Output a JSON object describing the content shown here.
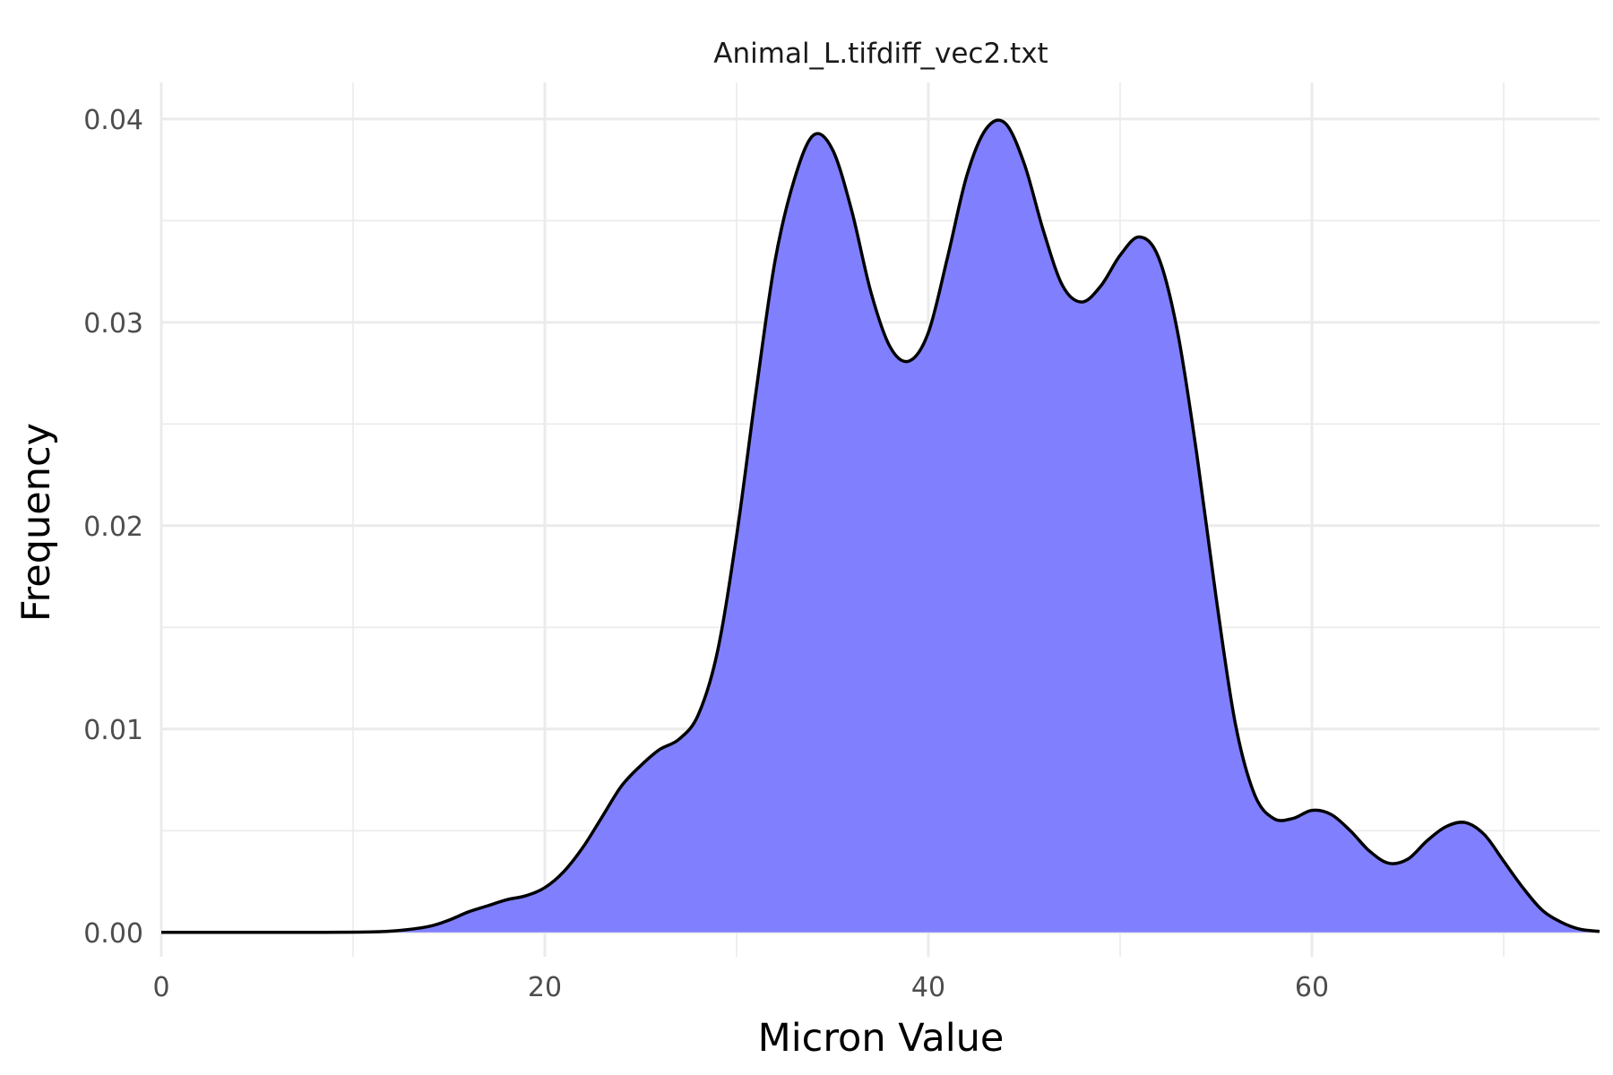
{
  "chart_data": {
    "type": "area",
    "title": "Animal_L.tifdiff_vec2.txt",
    "xlabel": "Micron Value",
    "ylabel": "Frequency",
    "xlim": [
      0,
      75
    ],
    "ylim": [
      -0.0012,
      0.0418
    ],
    "x_ticks": [
      0,
      20,
      40,
      60
    ],
    "x_tick_labels": [
      "0",
      "20",
      "40",
      "60"
    ],
    "y_ticks": [
      0,
      0.01,
      0.02,
      0.03,
      0.04
    ],
    "y_tick_labels": [
      "0.00",
      "0.01",
      "0.02",
      "0.03",
      "0.04"
    ],
    "grid": true,
    "fill_color": "#8080ff",
    "line_color": "#000000",
    "series": [
      {
        "x": [
          0,
          8,
          11,
          12.5,
          14,
          15,
          16,
          17,
          18,
          19,
          20,
          21,
          22,
          23,
          24,
          25,
          26,
          27,
          28,
          29,
          30,
          31,
          32,
          33,
          34,
          35,
          36,
          37,
          38,
          39,
          40,
          41,
          42,
          43,
          44,
          45,
          46,
          47,
          48,
          49,
          50,
          51,
          52,
          53,
          54,
          55,
          56,
          57,
          58,
          59,
          60,
          61,
          62,
          63,
          64,
          65,
          66,
          67,
          68,
          69,
          70,
          71,
          72,
          73,
          74,
          75
        ],
        "y": [
          0,
          0,
          2e-05,
          0.0001,
          0.0003,
          0.0006,
          0.001,
          0.0013,
          0.0016,
          0.0018,
          0.0022,
          0.003,
          0.0042,
          0.0057,
          0.0072,
          0.0082,
          0.009,
          0.0095,
          0.0107,
          0.0138,
          0.0195,
          0.0265,
          0.033,
          0.037,
          0.0392,
          0.0385,
          0.0355,
          0.0315,
          0.0288,
          0.0281,
          0.0295,
          0.0332,
          0.0372,
          0.0395,
          0.0398,
          0.0378,
          0.0345,
          0.0318,
          0.031,
          0.0318,
          0.0333,
          0.0342,
          0.0332,
          0.0295,
          0.0235,
          0.0165,
          0.0103,
          0.0068,
          0.0056,
          0.0056,
          0.006,
          0.0058,
          0.005,
          0.004,
          0.0034,
          0.0036,
          0.0045,
          0.0052,
          0.0054,
          0.0048,
          0.0035,
          0.0022,
          0.0011,
          0.0005,
          0.00015,
          5e-05
        ]
      }
    ]
  }
}
